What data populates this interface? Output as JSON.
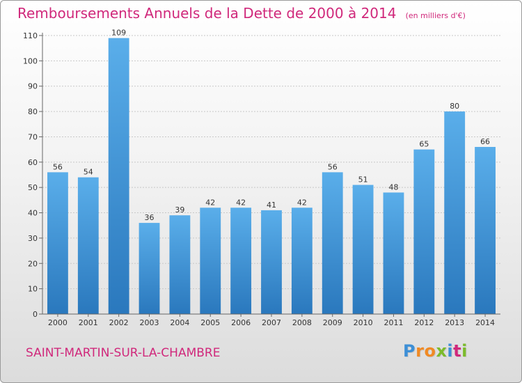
{
  "chart_data": {
    "type": "bar",
    "title": "Remboursements Annuels de la Dette de 2000 à 2014",
    "subtitle": "(en milliers d'€)",
    "xlabel": "",
    "ylabel": "",
    "categories": [
      "2000",
      "2001",
      "2002",
      "2003",
      "2004",
      "2005",
      "2006",
      "2007",
      "2008",
      "2009",
      "2010",
      "2011",
      "2012",
      "2013",
      "2014"
    ],
    "values": [
      56,
      54,
      109,
      36,
      39,
      42,
      42,
      41,
      42,
      56,
      51,
      48,
      65,
      80,
      66
    ],
    "ylim": [
      0,
      110
    ],
    "yticks": [
      0,
      10,
      20,
      30,
      40,
      50,
      60,
      70,
      80,
      90,
      100,
      110
    ],
    "grid": true,
    "legend": "none",
    "bar_color": "#3a8fd6"
  },
  "footer": {
    "commune": "SAINT-MARTIN-SUR-LA-CHAMBRE",
    "brand_letters": [
      {
        "ch": "P",
        "color": "#3d8fd6"
      },
      {
        "ch": "r",
        "color": "#f08a24"
      },
      {
        "ch": "o",
        "color": "#f08a24"
      },
      {
        "ch": "x",
        "color": "#7cbb2c"
      },
      {
        "ch": "i",
        "color": "#3d8fd6"
      },
      {
        "ch": "t",
        "color": "#d0287b"
      },
      {
        "ch": "i",
        "color": "#7cbb2c"
      }
    ]
  }
}
